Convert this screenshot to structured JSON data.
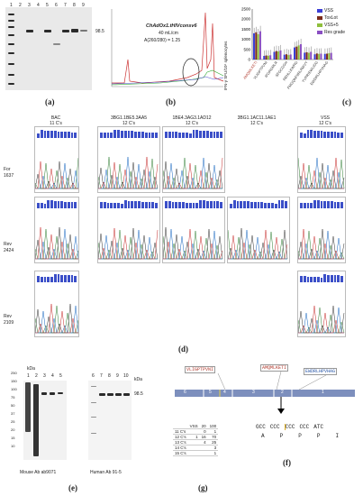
{
  "panel_a": {
    "label": "(a)",
    "lanes": [
      "1",
      "2",
      "3",
      "4",
      "5",
      "6",
      "7",
      "8",
      "9"
    ],
    "kda": "98.5"
  },
  "panel_b": {
    "label": "(b)",
    "name": "ChAdOx1.tHIVconsv6",
    "conc": "40 mL/cm",
    "ratio": "A(260/280) = 1.25"
  },
  "panel_c": {
    "label": "(c)",
    "ylabel": "IFN-γ SFU/10⁶ splenocytes",
    "legend": [
      "VSS",
      "ToxLot",
      "VSS+5",
      "Res grade"
    ],
    "colors": [
      "#3c3fd6",
      "#7a2a1a",
      "#8fbf3c",
      "#8a4fc2"
    ]
  },
  "chart_data": {
    "type": "bar",
    "categories": [
      "AMQMLKETI",
      "VLIGPTPVNI",
      "IFGRGMLR",
      "SFGCGGH",
      "REHLLKWRG",
      "FMGQNFIIRLRWVY",
      "YVPRIEWLIDG",
      "EWDRLHPVHAG"
    ],
    "series": [
      {
        "name": "VSS",
        "values": [
          1300,
          180,
          380,
          240,
          600,
          340,
          260,
          280
        ]
      },
      {
        "name": "ToxLot",
        "values": [
          1350,
          200,
          420,
          260,
          640,
          360,
          300,
          290
        ]
      },
      {
        "name": "VSS+5",
        "values": [
          1250,
          190,
          400,
          220,
          700,
          330,
          280,
          310
        ]
      },
      {
        "name": "Res grade",
        "values": [
          1400,
          210,
          450,
          250,
          760,
          380,
          290,
          330
        ]
      }
    ],
    "ylim": [
      0,
      2500
    ],
    "yticks": [
      "0",
      "500",
      "1000",
      "1500",
      "2000",
      "2500"
    ]
  },
  "panel_d": {
    "label": "(d)",
    "columns": [
      {
        "name": "BAC",
        "cs": "11 C's"
      },
      {
        "name": "3BG1.1BE5.3AA5",
        "cs": "12 C's"
      },
      {
        "name": "1BE4.3AG3.1AD12",
        "cs": "12 C's"
      },
      {
        "name": "3BG1.1AC11.1AE1",
        "cs": "12 C's"
      },
      {
        "name": "VSS",
        "cs": "12 C's"
      }
    ],
    "rows": [
      {
        "a": "For",
        "b": "1637"
      },
      {
        "a": "Rev",
        "b": "2424"
      },
      {
        "a": "Rev",
        "b": "2109"
      }
    ]
  },
  "panel_e": {
    "label": "(e)",
    "lanes_left": [
      "1",
      "2",
      "3",
      "4",
      "5"
    ],
    "lanes_right": [
      "6",
      "7",
      "8",
      "9",
      "10"
    ],
    "kda_title": "kDa",
    "kda": [
      "250",
      "150",
      "100",
      "75",
      "50",
      "37",
      "25",
      "20",
      "15",
      "10"
    ],
    "right_kda_title": "kDa",
    "right_kda": "98.5",
    "caption_left": "Mouse Ab ab9071",
    "caption_right": "Human Ab 91-5"
  },
  "panel_f": {
    "label": "(f)",
    "peptides": [
      "VLIGPTPVNI",
      "AMQMLKETI",
      "EWDRLHPVHAG"
    ],
    "segments": [
      "6",
      "5",
      "4",
      "3",
      "2",
      "1"
    ],
    "codons": [
      "GCC",
      "CCC",
      "CCC",
      "CCC",
      "ATC"
    ],
    "aa": [
      "A",
      "P",
      "P",
      "P",
      "I"
    ]
  },
  "panel_g": {
    "label": "(g)",
    "header": [
      "",
      "VSS",
      "20",
      "100"
    ],
    "rows": [
      [
        "11 C's",
        "",
        "0",
        "1"
      ],
      [
        "12 C's",
        "1",
        "16",
        "70"
      ],
      [
        "13 C's",
        "",
        "4",
        "25"
      ],
      [
        "14 C's",
        "",
        "",
        "3"
      ],
      [
        "15 C's",
        "",
        "",
        "1"
      ]
    ]
  }
}
